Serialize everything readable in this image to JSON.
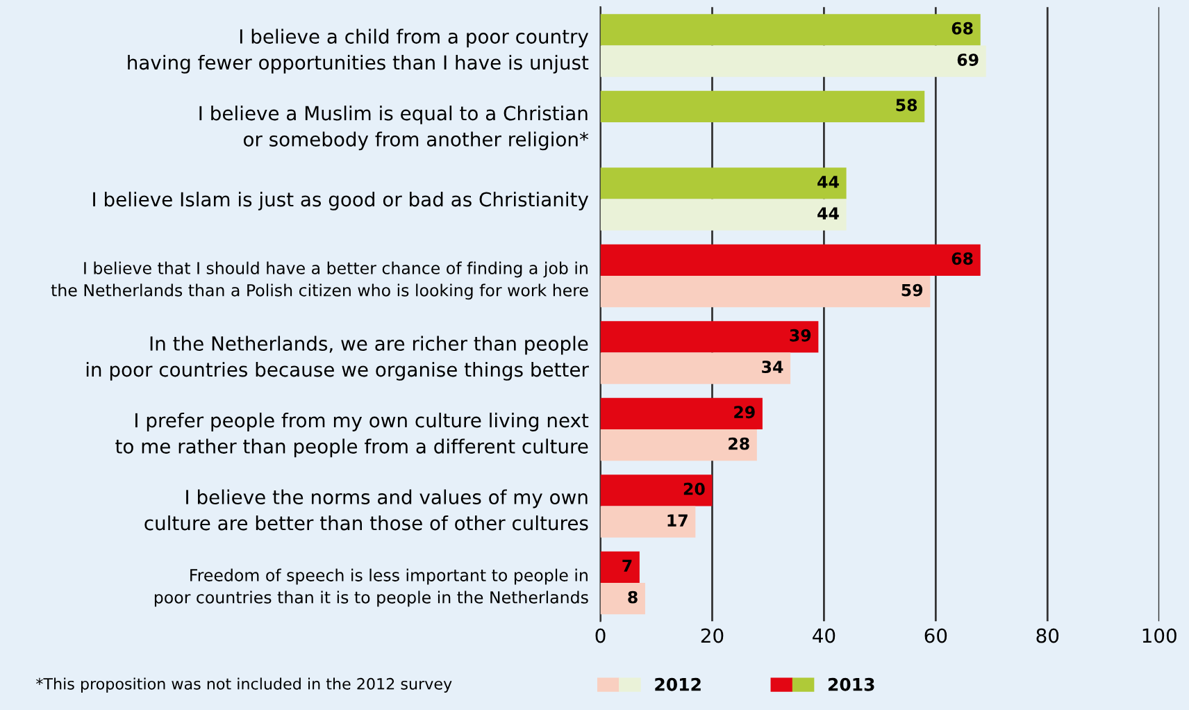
{
  "chart_data": {
    "type": "bar",
    "orientation": "horizontal",
    "categories": [
      "I believe a child from a poor country\nhaving fewer opportunities than I have is unjust",
      "I believe a Muslim is equal to a Christian\nor somebody from another religion*",
      "I believe Islam is just as good or bad as Christianity",
      "I believe that I should have a better chance of finding a job in\nthe Netherlands than a Polish citizen who is looking for work here",
      "In the Netherlands, we are richer than people\nin poor countries because we organise things better",
      "I prefer people from my own culture living next\nto me rather than people from a different culture",
      "I believe the norms and values of my own\nculture are better than those of other cultures",
      "Freedom of speech is less important to people in\npoor countries than it is to people in the Netherlands"
    ],
    "series": [
      {
        "name": "2013",
        "colors": [
          "#afca38",
          "#afca38",
          "#afca38",
          "#e30613",
          "#e30613",
          "#e30613",
          "#e30613",
          "#e30613"
        ],
        "values": [
          68,
          58,
          44,
          68,
          39,
          29,
          20,
          7
        ]
      },
      {
        "name": "2012",
        "colors": [
          "#eaf2d8",
          "#eaf2d8",
          "#eaf2d8",
          "#f9cfc0",
          "#f9cfc0",
          "#f9cfc0",
          "#f9cfc0",
          "#f9cfc0"
        ],
        "values": [
          69,
          null,
          44,
          59,
          34,
          28,
          17,
          8
        ]
      }
    ],
    "xlim": [
      0,
      100
    ],
    "xticks": [
      0,
      20,
      40,
      60,
      80,
      100
    ],
    "grid": "x",
    "data_labels": true,
    "legend": "bottom",
    "annotations": [
      "*This proposition was not included in the 2012 survey"
    ]
  }
}
